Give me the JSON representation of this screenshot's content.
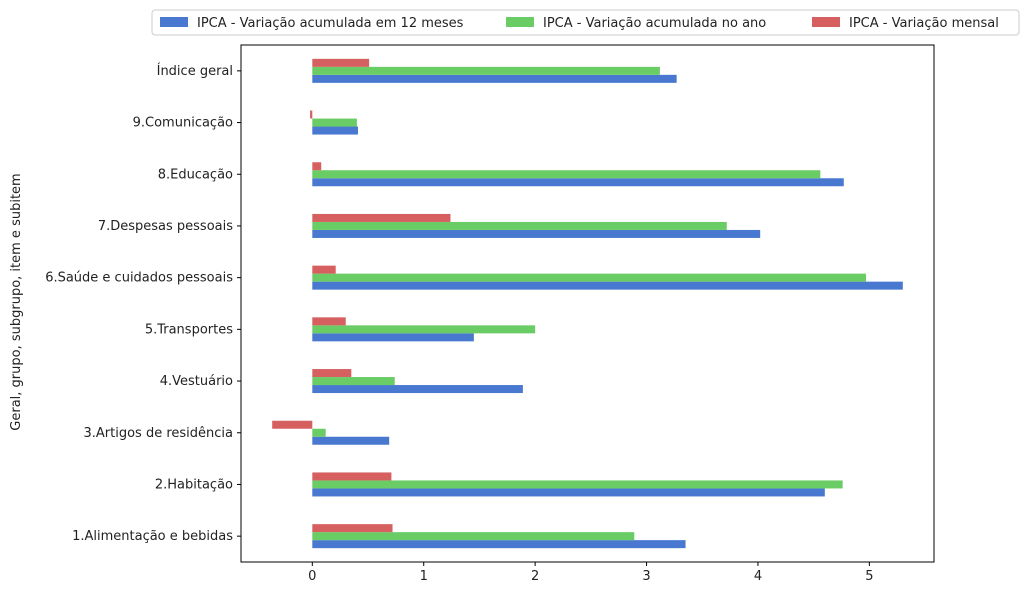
{
  "chart_data": {
    "type": "bar",
    "orientation": "horizontal",
    "ylabel": "Geral, grupo, subgrupo, item e subitem",
    "xlabel": "",
    "xlim": [
      -0.64,
      5.58
    ],
    "xticks": [
      0,
      1,
      2,
      3,
      4,
      5
    ],
    "grid": false,
    "legend_position": "top",
    "categories": [
      "1.Alimentação e bebidas",
      "2.Habitação",
      "3.Artigos de residência",
      "4.Vestuário",
      "5.Transportes",
      "6.Saúde e cuidados pessoais",
      "7.Despesas pessoais",
      "8.Educação",
      "9.Comunicação",
      "Índice geral"
    ],
    "series": [
      {
        "name": "IPCA - Variação acumulada em 12 meses",
        "color": "#4878cf",
        "values": [
          3.35,
          4.6,
          0.69,
          1.89,
          1.45,
          5.3,
          4.02,
          4.77,
          0.41,
          3.27
        ]
      },
      {
        "name": "IPCA - Variação acumulada no ano",
        "color": "#6acc65",
        "values": [
          2.89,
          4.76,
          0.12,
          0.74,
          2.0,
          4.97,
          3.72,
          4.56,
          0.4,
          3.12
        ]
      },
      {
        "name": "IPCA - Variação mensal",
        "color": "#d65f5f",
        "values": [
          0.72,
          0.71,
          -0.36,
          0.35,
          0.3,
          0.21,
          1.24,
          0.08,
          -0.02,
          0.51
        ]
      }
    ]
  }
}
